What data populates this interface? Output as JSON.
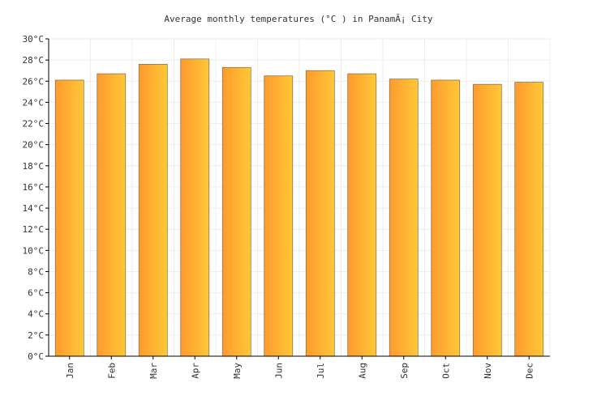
{
  "chart_data": {
    "type": "bar",
    "title": "Average monthly temperatures (°C ) in PanamÃ¡ City",
    "categories": [
      "Jan",
      "Feb",
      "Mar",
      "Apr",
      "May",
      "Jun",
      "Jul",
      "Aug",
      "Sep",
      "Oct",
      "Nov",
      "Dec"
    ],
    "values": [
      26.1,
      26.7,
      27.6,
      28.1,
      27.3,
      26.5,
      27.0,
      26.7,
      26.2,
      26.1,
      25.7,
      25.9
    ],
    "ylim": [
      0,
      30
    ],
    "yticks": [
      "0°C",
      "2°C",
      "4°C",
      "6°C",
      "8°C",
      "10°C",
      "12°C",
      "14°C",
      "16°C",
      "18°C",
      "20°C",
      "22°C",
      "24°C",
      "26°C",
      "28°C",
      "30°C"
    ],
    "grid": true,
    "colors": {
      "bar_left": "#ff9a2e",
      "bar_right": "#ffc837",
      "bar_stroke": "#7a6a4a",
      "grid": "#eeeeee",
      "axis": "#000000"
    }
  }
}
